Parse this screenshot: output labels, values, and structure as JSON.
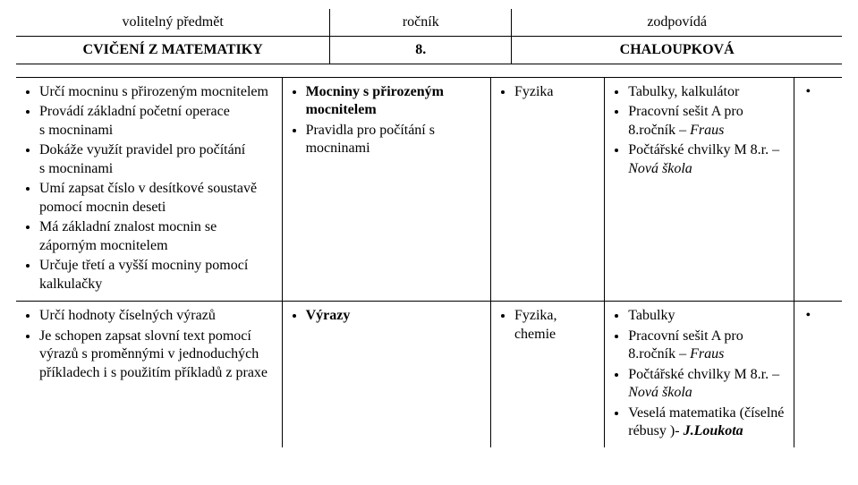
{
  "header": {
    "row1": {
      "a": "volitelný předmět",
      "b": "ročník",
      "c": "zodpovídá"
    },
    "row2": {
      "a": "CVIČENÍ Z MATEMATIKY",
      "b": "8.",
      "c": "CHALOUPKOVÁ"
    }
  },
  "rows": [
    {
      "outcomes": [
        "Určí mocninu s přirozeným mocnitelem",
        "Provádí základní početní operace s mocninami",
        "Dokáže využít pravidel pro počítání s mocninami",
        "Umí zapsat číslo v desítkové soustavě pomocí mocnin deseti",
        "Má základní znalost mocnin se záporným mocnitelem",
        "Určuje třetí a vyšší mocniny pomocí kalkulačky"
      ],
      "topic": [
        {
          "text": "Mocniny s přirozeným mocnitelem",
          "bold": true
        },
        {
          "text": "Pravidla pro počítání s mocninami"
        }
      ],
      "links": [
        {
          "text": "Fyzika"
        }
      ],
      "notes": [
        {
          "text": "Tabulky, kalkulátor"
        },
        {
          "text": "Pracovní sešit A  pro 8.ročník – ",
          "tail": "Fraus",
          "tailStyle": "italic"
        },
        {
          "text": "Počtářské chvilky M 8.r. – ",
          "tail": "Nová škola",
          "tailStyle": "italic"
        }
      ]
    },
    {
      "outcomes": [
        "Určí hodnoty číselných výrazů",
        "Je schopen zapsat slovní text pomocí výrazů s proměnnými v jednoduchých příkladech i s použitím příkladů z praxe"
      ],
      "topic": [
        {
          "text": "Výrazy",
          "bold": true
        }
      ],
      "links": [
        {
          "text": "Fyzika, chemie"
        }
      ],
      "notes": [
        {
          "text": "Tabulky"
        },
        {
          "text": "Pracovní sešit A pro 8.ročník – ",
          "tail": "Fraus",
          "tailStyle": "italic"
        },
        {
          "text": "Počtářské chvilky M 8.r. – ",
          "tail": "Nová škola",
          "tailStyle": "italic"
        },
        {
          "text": "Veselá matematika (číselné rébusy )- ",
          "tail": "J.Loukota",
          "tailStyle": "bolditalic"
        }
      ]
    }
  ]
}
